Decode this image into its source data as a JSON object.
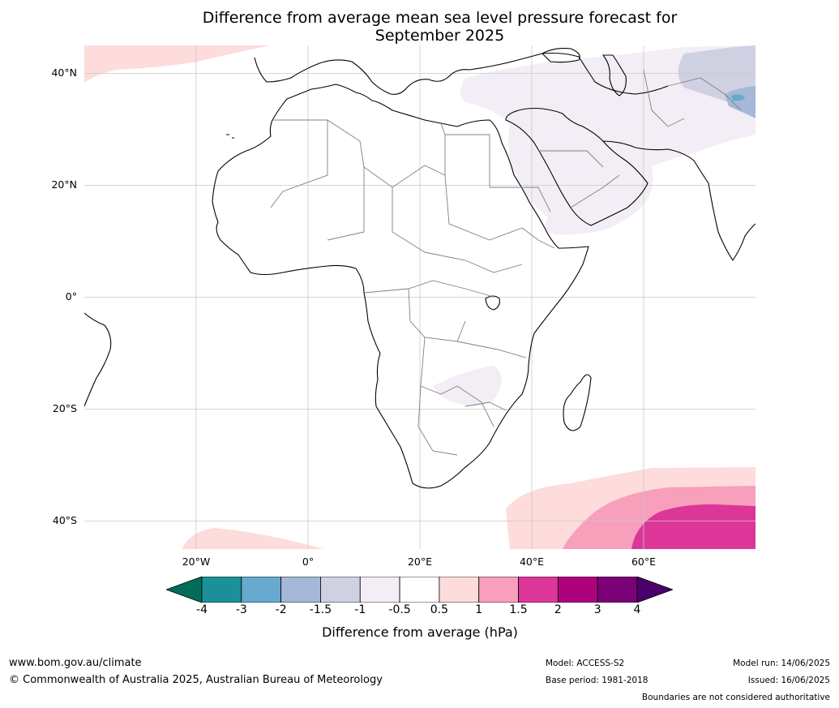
{
  "title": {
    "line1": "Difference from average mean sea level pressure forecast for",
    "line2": "September 2025"
  },
  "map": {
    "projection": "equirectangular",
    "region": "Africa, Middle East and Indian Ocean",
    "lon_range": [
      -30,
      90
    ],
    "lat_range": [
      -45,
      45
    ],
    "latitude_labels": [
      "40°N",
      "20°N",
      "0°",
      "20°S",
      "40°S"
    ],
    "longitude_labels": [
      "20°W",
      "0°",
      "20°E",
      "40°E",
      "60°E"
    ],
    "grid": true,
    "ocean_color": "#ffffff",
    "land_color": "#ffffff",
    "coastline_color": "#000000",
    "border_color": "#808080",
    "anomaly_regions": [
      {
        "area": "North Atlantic (NW corner)",
        "category": "0.5 to 1",
        "color": "#fddcdb"
      },
      {
        "area": "Middle East / Arabian Peninsula / Central Asia",
        "category": "-1 to -0.5",
        "color": "#f3eef5"
      },
      {
        "area": "Caspian / Central Asia",
        "category": "-1.5 to -1",
        "color": "#cfd1e3"
      },
      {
        "area": "Pakistan / Afghanistan",
        "category": "-2 to -1.5",
        "color": "#a6b8d7"
      },
      {
        "area": "Hindu Kush small patch",
        "category": "-3 to -2",
        "color": "#67a9cf"
      },
      {
        "area": "Southern Africa (Botswana / Mozambique)",
        "category": "-1 to -0.5",
        "color": "#f3eef5"
      },
      {
        "area": "Southern Indian Ocean outer band",
        "category": "0.5 to 1",
        "color": "#fddcdb"
      },
      {
        "area": "Southern Indian Ocean middle band",
        "category": "1 to 1.5",
        "color": "#f89fbc"
      },
      {
        "area": "Southern Indian Ocean core",
        "category": "1.5 to 2",
        "color": "#dc3699"
      },
      {
        "area": "South Atlantic (SW)",
        "category": "0.5 to 1",
        "color": "#fddcdb"
      }
    ]
  },
  "colorbar": {
    "label": "Difference from average (hPa)",
    "ticks": [
      "-4",
      "-3",
      "-2",
      "-1.5",
      "-1",
      "-0.5",
      "0.5",
      "1",
      "1.5",
      "2",
      "3",
      "4"
    ],
    "colors": [
      "#016c59",
      "#1c9099",
      "#67a9cf",
      "#a6b8d7",
      "#cfd1e3",
      "#f3eef5",
      "#ffffff",
      "#fddcdb",
      "#f89fbc",
      "#dc3699",
      "#ae017e",
      "#7a0177",
      "#49006a"
    ]
  },
  "footer": {
    "website": "www.bom.gov.au/climate",
    "copyright": "© Commonwealth of Australia 2025, Australian Bureau of Meteorology",
    "model": "Model: ACCESS-S2",
    "base_period": "Base period: 1981-2018",
    "model_run": "Model run: 14/06/2025",
    "issued": "Issued: 16/06/2025",
    "disclaimer": "Boundaries are not considered authoritative"
  }
}
